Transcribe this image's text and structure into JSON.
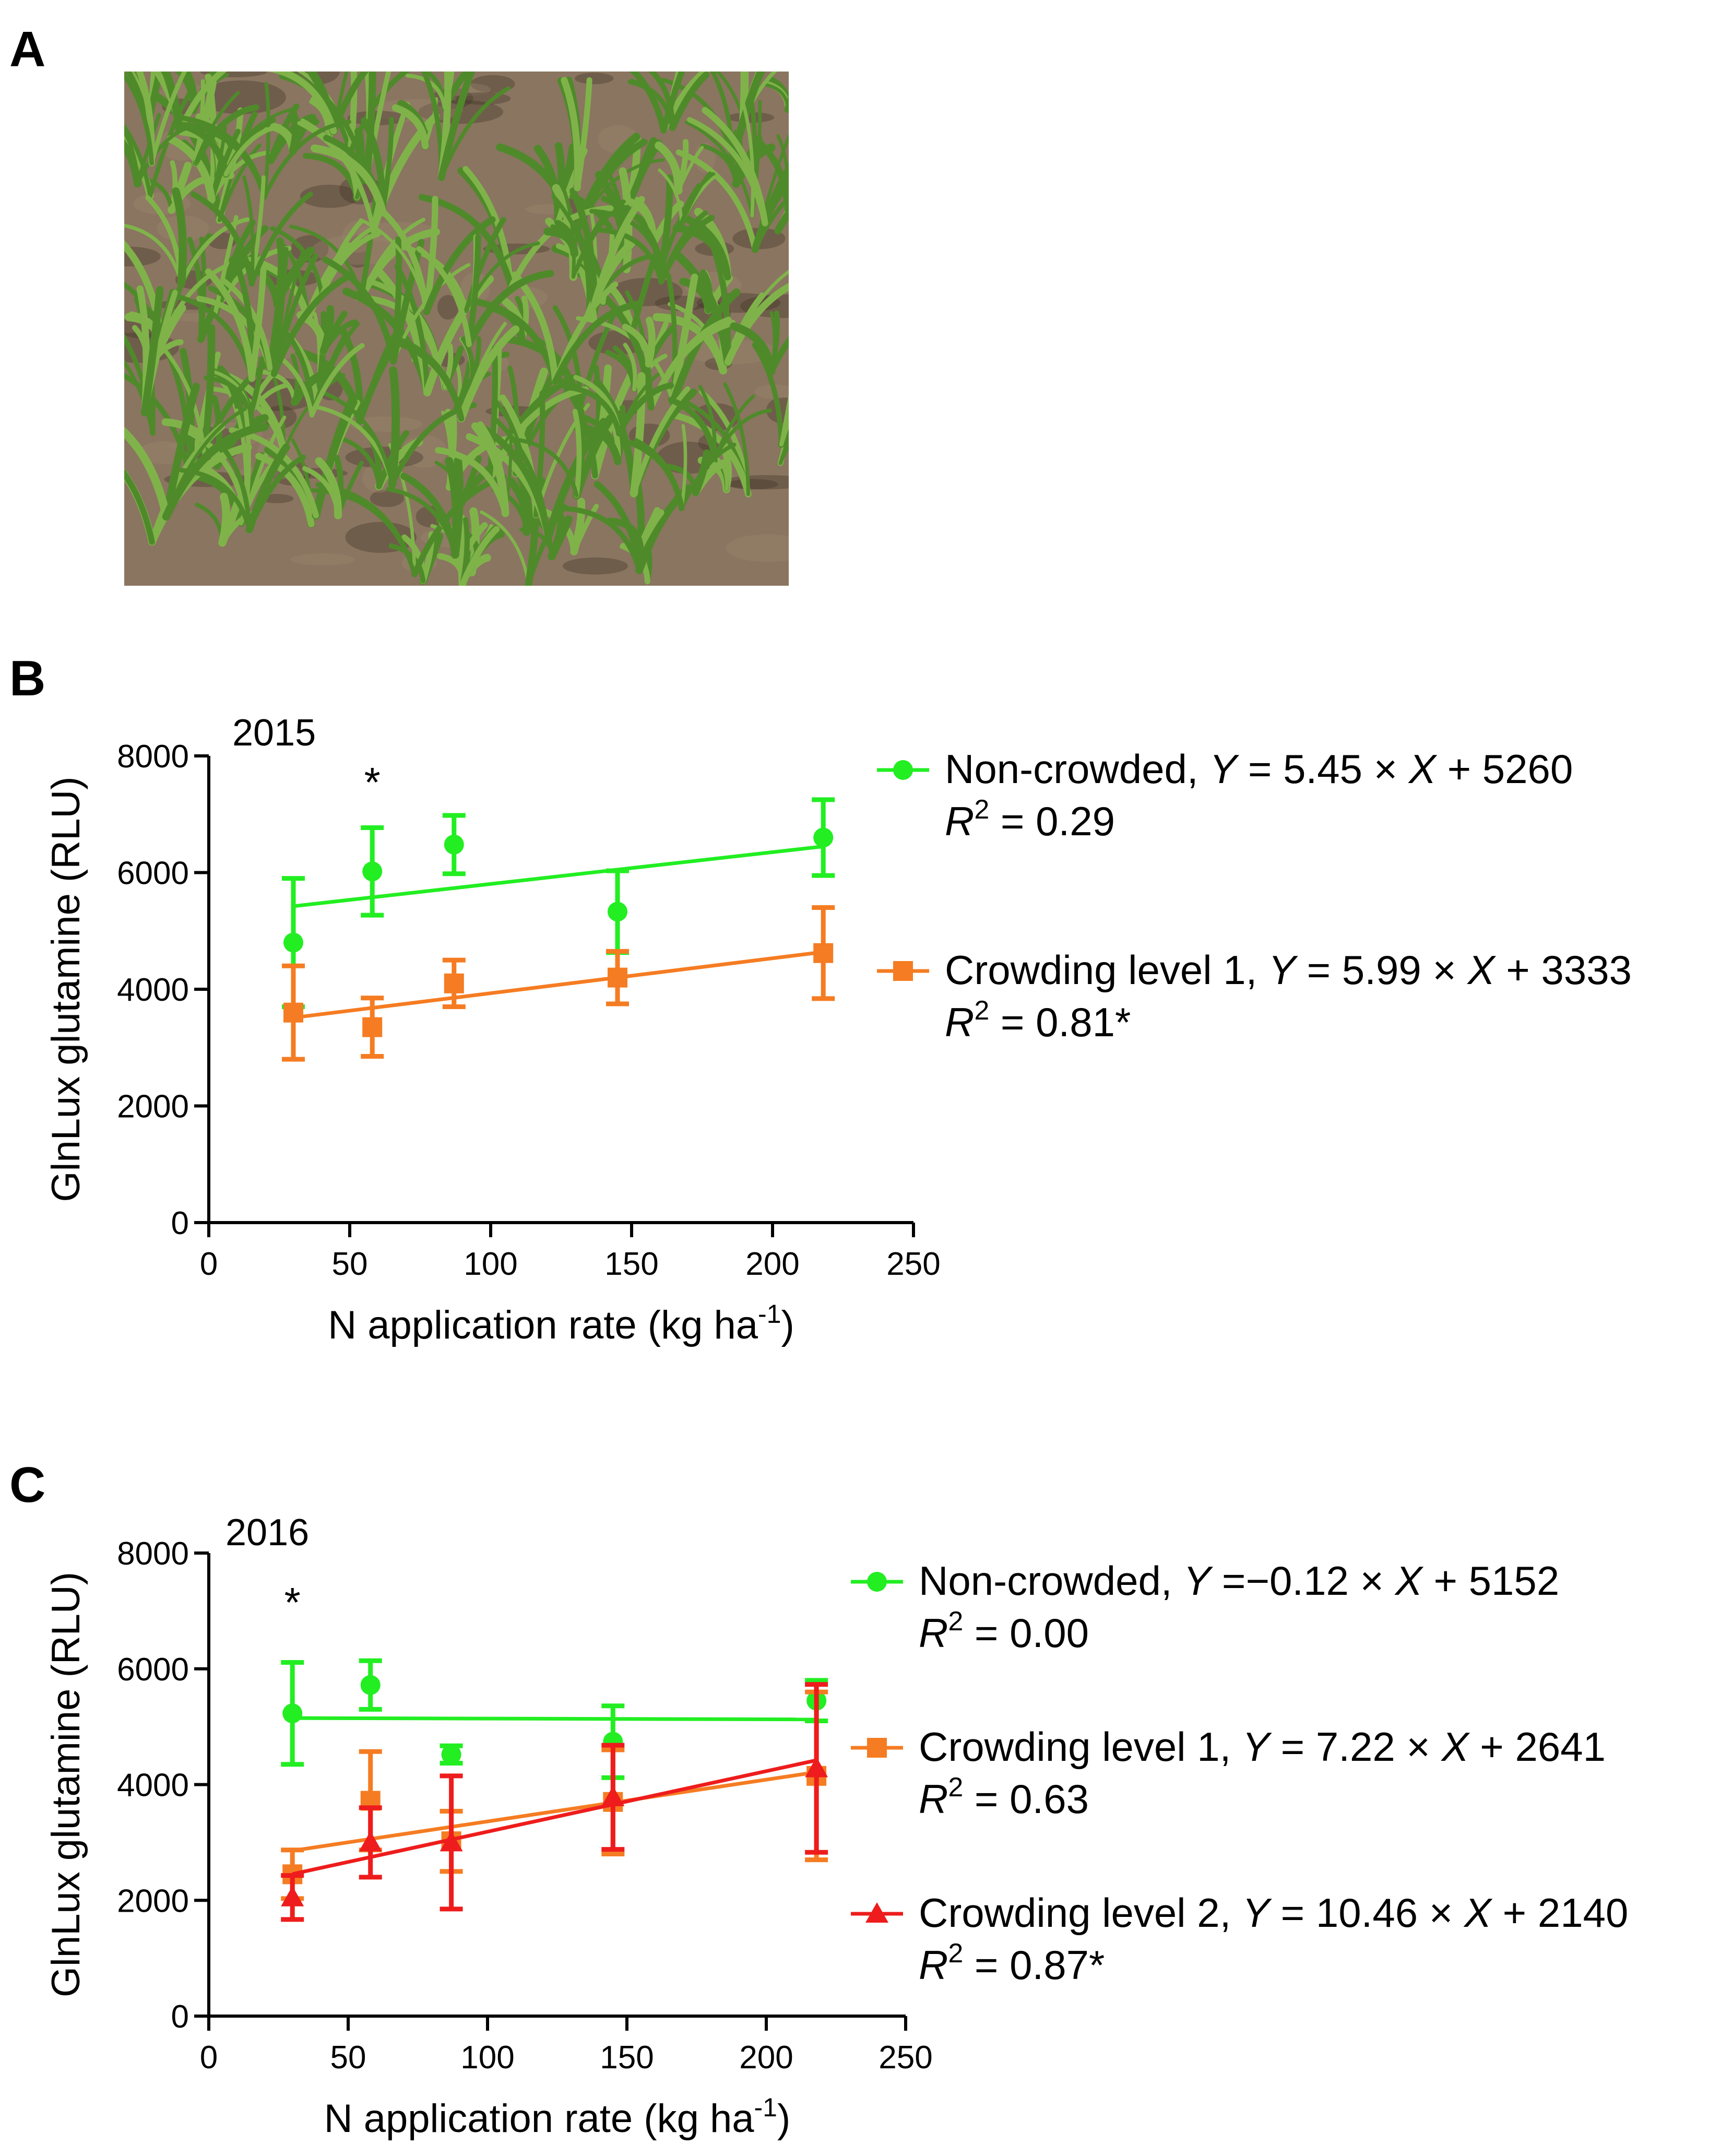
{
  "panels": {
    "a": {
      "letter": "A"
    },
    "b": {
      "letter": "B"
    },
    "c": {
      "letter": "C"
    }
  },
  "photo": {
    "subject": "maize seedlings",
    "colors": {
      "soil": "#8a7560",
      "leaf": "#4f8a2a",
      "shadow": "#3b3026"
    }
  },
  "chart_data": [
    {
      "type": "scatter",
      "title": "2015",
      "xlabel": "N application rate (kg ha",
      "xlabel_sup": "-1",
      "xlabel_end": ")",
      "ylabel": "GlnLux glutamine (RLU)",
      "xlim": [
        0,
        250
      ],
      "ylim": [
        0,
        8000
      ],
      "xticks": [
        "0",
        "50",
        "100",
        "150",
        "200",
        "250"
      ],
      "yticks": [
        "0",
        "2000",
        "4000",
        "6000",
        "8000"
      ],
      "grid": false,
      "legend_position": "right",
      "annotations": [
        {
          "text": "*",
          "x": 58,
          "y": 7300
        }
      ],
      "series": [
        {
          "name": "Non-crowded",
          "marker": "circle",
          "color": "#22ee22",
          "x": [
            30,
            58,
            87,
            145,
            218
          ],
          "y": [
            4800,
            6020,
            6480,
            5330,
            6600
          ],
          "err": [
            1100,
            750,
            500,
            700,
            650
          ],
          "fit": {
            "slope": 5.45,
            "intercept": 5260
          },
          "legend_name": "Non-crowded,",
          "eq_y": "Y",
          "eq_mid": " = 5.45 × ",
          "eq_x": "X",
          "eq_end": " + 5260",
          "r2_r": "R",
          "r2_sup": "2",
          "r2_val": " = 0.29"
        },
        {
          "name": "Crowding level 1",
          "marker": "square",
          "color": "#f57c22",
          "x": [
            30,
            58,
            87,
            145,
            218
          ],
          "y": [
            3600,
            3350,
            4100,
            4200,
            4620
          ],
          "err": [
            800,
            500,
            400,
            450,
            780
          ],
          "fit": {
            "slope": 5.99,
            "intercept": 3333
          },
          "legend_name": "Crowding level 1,",
          "eq_y": "Y",
          "eq_mid": " = 5.99 × ",
          "eq_x": "X",
          "eq_end": " + 3333",
          "r2_r": "R",
          "r2_sup": "2",
          "r2_val": " = 0.81*"
        }
      ]
    },
    {
      "type": "scatter",
      "title": "2016",
      "xlabel": "N application rate (kg ha",
      "xlabel_sup": "-1",
      "xlabel_end": ")",
      "ylabel": "GlnLux glutamine (RLU)",
      "xlim": [
        0,
        250
      ],
      "ylim": [
        0,
        8000
      ],
      "xticks": [
        "0",
        "50",
        "100",
        "150",
        "200",
        "250"
      ],
      "yticks": [
        "0",
        "2000",
        "4000",
        "6000",
        "8000"
      ],
      "grid": false,
      "legend_position": "right",
      "annotations": [
        {
          "text": "*",
          "x": 30,
          "y": 6900
        }
      ],
      "series": [
        {
          "name": "Non-crowded",
          "marker": "circle",
          "color": "#22ee22",
          "x": [
            30,
            58,
            87,
            145,
            218
          ],
          "y": [
            5230,
            5720,
            4520,
            4740,
            5450
          ],
          "err": [
            880,
            420,
            150,
            620,
            350
          ],
          "fit": {
            "slope": -0.12,
            "intercept": 5152
          },
          "legend_name": "Non-crowded,",
          "eq_y": "Y",
          "eq_mid": " =−0.12 × ",
          "eq_x": "X",
          "eq_end": " + 5152",
          "r2_r": "R",
          "r2_sup": "2",
          "r2_val": " = 0.00"
        },
        {
          "name": "Crowding level 1",
          "marker": "square",
          "color": "#f57c22",
          "x": [
            30,
            58,
            87,
            145,
            218
          ],
          "y": [
            2450,
            3720,
            3020,
            3700,
            4150
          ],
          "err": [
            420,
            850,
            520,
            900,
            1450
          ],
          "fit": {
            "slope": 7.22,
            "intercept": 2641
          },
          "legend_name": "Crowding level 1,",
          "eq_y": "Y",
          "eq_mid": " = 7.22 × ",
          "eq_x": "X",
          "eq_end": " + 2641",
          "r2_r": "R",
          "r2_sup": "2",
          "r2_val": " = 0.63"
        },
        {
          "name": "Crowding level 2",
          "marker": "triangle",
          "color": "#ee1c1c",
          "x": [
            30,
            58,
            87,
            145,
            218
          ],
          "y": [
            2050,
            3000,
            3000,
            3780,
            4280
          ],
          "err": [
            380,
            600,
            1150,
            900,
            1450
          ],
          "fit": {
            "slope": 10.46,
            "intercept": 2140
          },
          "legend_name": "Crowding level 2,",
          "eq_y": "Y",
          "eq_mid": " = 10.46 × ",
          "eq_x": "X",
          "eq_end": " + 2140",
          "r2_r": "R",
          "r2_sup": "2",
          "r2_val": " = 0.87*"
        }
      ]
    }
  ]
}
